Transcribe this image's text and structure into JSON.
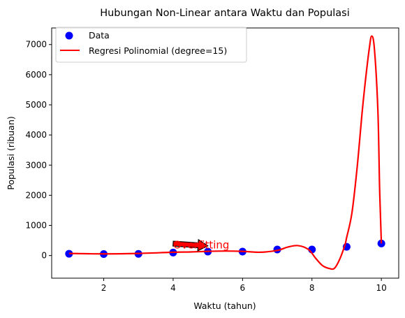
{
  "chart_data": {
    "type": "scatter",
    "title": "Hubungan Non-Linear antara Waktu dan Populasi",
    "xlabel": "Waktu (tahun)",
    "ylabel": "Populasi (ribuan)",
    "xlim": [
      0.5,
      10.5
    ],
    "ylim": [
      -750,
      7550
    ],
    "xticks": [
      2,
      4,
      6,
      8,
      10
    ],
    "yticks": [
      0,
      1000,
      2000,
      3000,
      4000,
      5000,
      6000,
      7000
    ],
    "grid": false,
    "legend_position": "upper-left",
    "series": [
      {
        "name": "Data",
        "kind": "scatter",
        "color": "#0000ff",
        "x": [
          1,
          2,
          3,
          4,
          5,
          6,
          7,
          8,
          9,
          10
        ],
        "y": [
          60,
          50,
          55,
          100,
          130,
          130,
          200,
          200,
          290,
          400
        ]
      },
      {
        "name": "Regresi Polinomial (degree=15)",
        "kind": "line",
        "color": "#ff0000",
        "x": [
          1,
          2,
          3,
          4,
          4.5,
          5,
          5.5,
          6,
          6.5,
          7,
          7.3,
          7.6,
          7.9,
          8.1,
          8.3,
          8.5,
          8.65,
          8.8,
          8.95,
          9.0,
          9.15,
          9.3,
          9.45,
          9.55,
          9.65,
          9.72,
          9.8,
          9.9,
          9.95,
          10
        ],
        "y": [
          70,
          55,
          70,
          110,
          120,
          140,
          150,
          140,
          110,
          170,
          280,
          330,
          200,
          -80,
          -330,
          -430,
          -420,
          -120,
          350,
          600,
          1400,
          2900,
          4800,
          5900,
          6850,
          7280,
          6850,
          4800,
          2200,
          400
        ]
      }
    ],
    "annotation": {
      "text": "Overfitting",
      "color": "#ff0000",
      "text_x": 4,
      "text_y": 350,
      "arrow_to_x": 5,
      "arrow_to_y": 320
    }
  }
}
